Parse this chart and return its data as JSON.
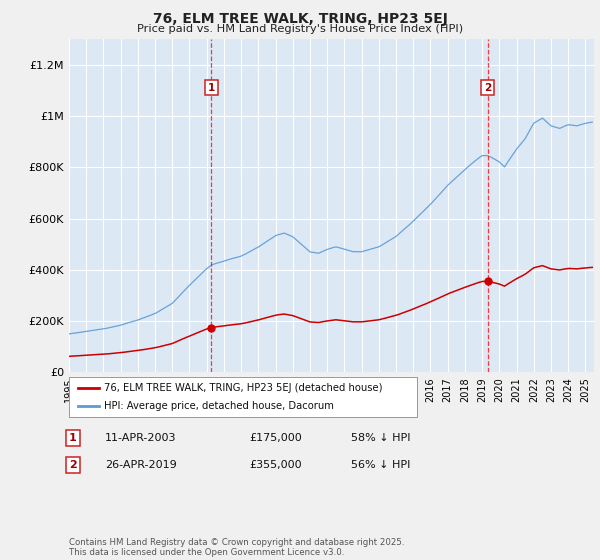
{
  "title": "76, ELM TREE WALK, TRING, HP23 5EJ",
  "subtitle": "Price paid vs. HM Land Registry's House Price Index (HPI)",
  "ylim": [
    0,
    1300000
  ],
  "yticks": [
    0,
    200000,
    400000,
    600000,
    800000,
    1000000,
    1200000
  ],
  "ytick_labels": [
    "£0",
    "£200K",
    "£400K",
    "£600K",
    "£800K",
    "£1M",
    "£1.2M"
  ],
  "xlim_start": 1995.0,
  "xlim_end": 2025.5,
  "fig_bg_color": "#f0f0f0",
  "plot_bg_color": "#dde8f5",
  "grid_color": "#ffffff",
  "sale1_date": 2003.27,
  "sale1_price": 175000,
  "sale1_text": "11-APR-2003",
  "sale1_pct": "58% ↓ HPI",
  "sale2_date": 2019.32,
  "sale2_price": 355000,
  "sale2_text": "26-APR-2019",
  "sale2_pct": "56% ↓ HPI",
  "red_color": "#cc0000",
  "blue_color": "#5b9bd5",
  "legend_label_red": "76, ELM TREE WALK, TRING, HP23 5EJ (detached house)",
  "legend_label_blue": "HPI: Average price, detached house, Dacorum",
  "footer": "Contains HM Land Registry data © Crown copyright and database right 2025.\nThis data is licensed under the Open Government Licence v3.0."
}
